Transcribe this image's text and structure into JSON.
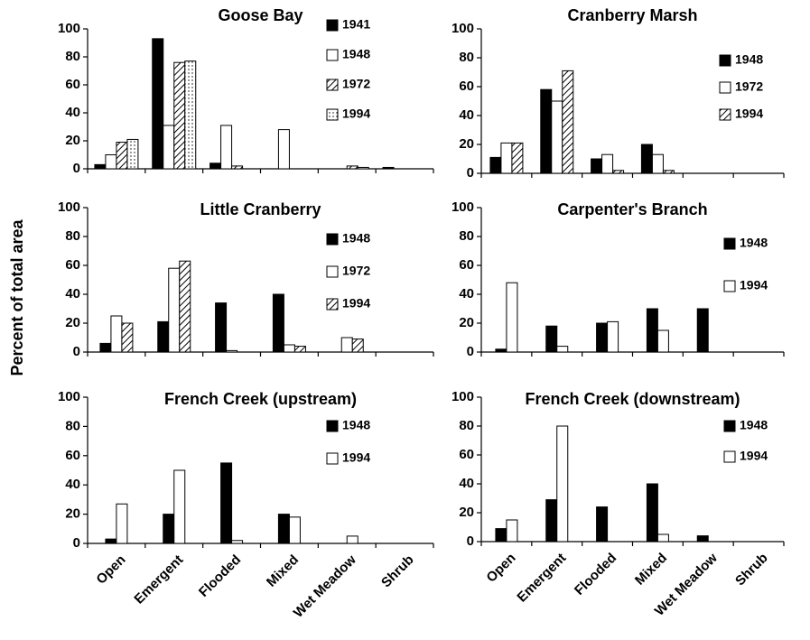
{
  "ylabel": "Percent of total area",
  "chart_data": [
    {
      "type": "bar",
      "title": "Goose Bay",
      "categories": [
        null,
        null,
        null,
        null,
        null,
        null
      ],
      "series": [
        {
          "name": "1941",
          "color": "#000000",
          "pattern": "solid",
          "values": [
            3,
            93,
            4,
            0,
            0,
            1
          ]
        },
        {
          "name": "1948",
          "color": "#ffffff",
          "pattern": "solid",
          "values": [
            10,
            31,
            31,
            28,
            0,
            0
          ]
        },
        {
          "name": "1972",
          "color": "#ffffff",
          "pattern": "hatch",
          "values": [
            19,
            76,
            2,
            0,
            2,
            0
          ]
        },
        {
          "name": "1994",
          "color": "#ffffff",
          "pattern": "dots",
          "values": [
            21,
            77,
            0,
            0,
            1,
            0
          ]
        }
      ],
      "ylim": [
        0,
        100
      ],
      "yticks": [
        0,
        20,
        40,
        60,
        80,
        100
      ]
    },
    {
      "type": "bar",
      "title": "Cranberry Marsh",
      "categories": [
        null,
        null,
        null,
        null,
        null,
        null
      ],
      "series": [
        {
          "name": "1948",
          "color": "#000000",
          "pattern": "solid",
          "values": [
            11,
            58,
            10,
            20,
            0,
            0
          ]
        },
        {
          "name": "1972",
          "color": "#ffffff",
          "pattern": "solid",
          "values": [
            21,
            50,
            13,
            13,
            0,
            0
          ]
        },
        {
          "name": "1994",
          "color": "#ffffff",
          "pattern": "hatch",
          "values": [
            21,
            71,
            2,
            2,
            0,
            0
          ]
        }
      ],
      "ylim": [
        0,
        100
      ],
      "yticks": [
        0,
        20,
        40,
        60,
        80,
        100
      ]
    },
    {
      "type": "bar",
      "title": "Little Cranberry",
      "categories": [
        null,
        null,
        null,
        null,
        null,
        null
      ],
      "series": [
        {
          "name": "1948",
          "color": "#000000",
          "pattern": "solid",
          "values": [
            6,
            21,
            34,
            40,
            0,
            0
          ]
        },
        {
          "name": "1972",
          "color": "#ffffff",
          "pattern": "solid",
          "values": [
            25,
            58,
            1,
            5,
            10,
            0
          ]
        },
        {
          "name": "1994",
          "color": "#ffffff",
          "pattern": "hatch",
          "values": [
            20,
            63,
            0,
            4,
            9,
            0
          ]
        }
      ],
      "ylim": [
        0,
        100
      ],
      "yticks": [
        0,
        20,
        40,
        60,
        80,
        100
      ]
    },
    {
      "type": "bar",
      "title": "Carpenter's Branch",
      "categories": [
        null,
        null,
        null,
        null,
        null,
        null
      ],
      "series": [
        {
          "name": "1948",
          "color": "#000000",
          "pattern": "solid",
          "values": [
            2,
            18,
            20,
            30,
            30,
            0
          ]
        },
        {
          "name": "1994",
          "color": "#ffffff",
          "pattern": "solid",
          "values": [
            48,
            4,
            21,
            15,
            0,
            0
          ]
        }
      ],
      "ylim": [
        0,
        100
      ],
      "yticks": [
        0,
        20,
        40,
        60,
        80,
        100
      ]
    },
    {
      "type": "bar",
      "title": "French Creek (upstream)",
      "categories": [
        "Open",
        "Emergent",
        "Flooded",
        "Mixed",
        "Wet Meadow",
        "Shrub"
      ],
      "series": [
        {
          "name": "1948",
          "color": "#000000",
          "pattern": "solid",
          "values": [
            3,
            20,
            55,
            20,
            0,
            0
          ]
        },
        {
          "name": "1994",
          "color": "#ffffff",
          "pattern": "solid",
          "values": [
            27,
            50,
            2,
            18,
            5,
            0
          ]
        }
      ],
      "ylim": [
        0,
        100
      ],
      "yticks": [
        0,
        20,
        40,
        60,
        80,
        100
      ]
    },
    {
      "type": "bar",
      "title": "French Creek (downstream)",
      "categories": [
        "Open",
        "Emergent",
        "Flooded",
        "Mixed",
        "Wet Meadow",
        "Shrub"
      ],
      "series": [
        {
          "name": "1948",
          "color": "#000000",
          "pattern": "solid",
          "values": [
            9,
            29,
            24,
            40,
            4,
            0
          ]
        },
        {
          "name": "1994",
          "color": "#ffffff",
          "pattern": "solid",
          "values": [
            15,
            80,
            0,
            5,
            0,
            0
          ]
        }
      ],
      "ylim": [
        0,
        100
      ],
      "yticks": [
        0,
        20,
        40,
        60,
        80,
        100
      ]
    }
  ]
}
